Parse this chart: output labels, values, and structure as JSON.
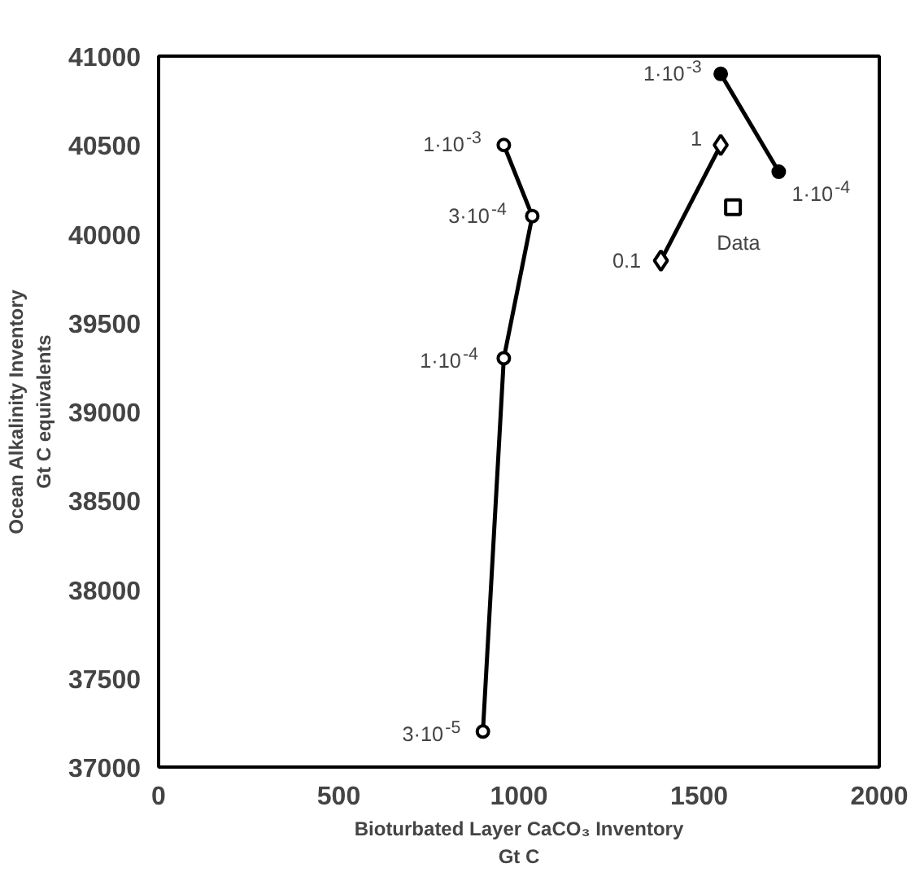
{
  "chart_data": {
    "type": "line",
    "xlabel": "Bioturbated Layer CaCO₃ Inventory\nGt C",
    "ylabel": "Ocean Alkalinity Inventory\nGt C equivalents",
    "xlim": [
      0,
      2000
    ],
    "xticks": [
      0,
      500,
      1000,
      1500,
      2000
    ],
    "ylim": [
      37000,
      41000
    ],
    "yticks": [
      37000,
      37500,
      38000,
      38500,
      39000,
      39500,
      40000,
      40500,
      41000
    ],
    "grid": false,
    "line_style": "solid",
    "series": [
      {
        "marker": "circle",
        "color": "#000000",
        "colors": [
          "#ffffff",
          "#ffffff",
          "#ffffff",
          "#ffffff"
        ],
        "x": [
          958,
          1037,
          958,
          900
        ],
        "values": [
          40500,
          40100,
          39300,
          37200
        ]
      },
      {
        "marker": "circle",
        "color": "#000000",
        "colors": [
          "#000000",
          "#000000"
        ],
        "x": [
          1560,
          1721
        ],
        "values": [
          40900,
          40350
        ]
      },
      {
        "marker": "diamond",
        "color": "#000000",
        "colors": [
          "#ffffff",
          "#ffffff"
        ],
        "x": [
          1560,
          1394
        ],
        "values": [
          40500,
          39850
        ]
      },
      {
        "type": "scatter",
        "marker": "square",
        "color": "#000000",
        "colors": [
          "#ffffff"
        ],
        "x": [
          1594
        ],
        "values": [
          40150
        ]
      }
    ],
    "annotations": [
      {
        "text": "1·10$^{-3}$",
        "x": 958,
        "y": 40500
      },
      {
        "text": "3·10$^{-4}$",
        "x": 1037,
        "y": 40100
      },
      {
        "text": "1·10$^{-4}$",
        "x": 958,
        "y": 39300
      },
      {
        "text": "3·10$^{-5}$",
        "x": 900,
        "y": 37200
      },
      {
        "text": "1·10$^{-3}$",
        "x": 1560,
        "y": 40900
      },
      {
        "text": "1·10$^{-4}$",
        "x": 1721,
        "y": 40350
      },
      {
        "text": "1",
        "x": 1560,
        "y": 40500
      },
      {
        "text": "0.1",
        "x": 1394,
        "y": 39850
      },
      {
        "text": "Data",
        "x": 1594,
        "y": 40150
      }
    ]
  }
}
